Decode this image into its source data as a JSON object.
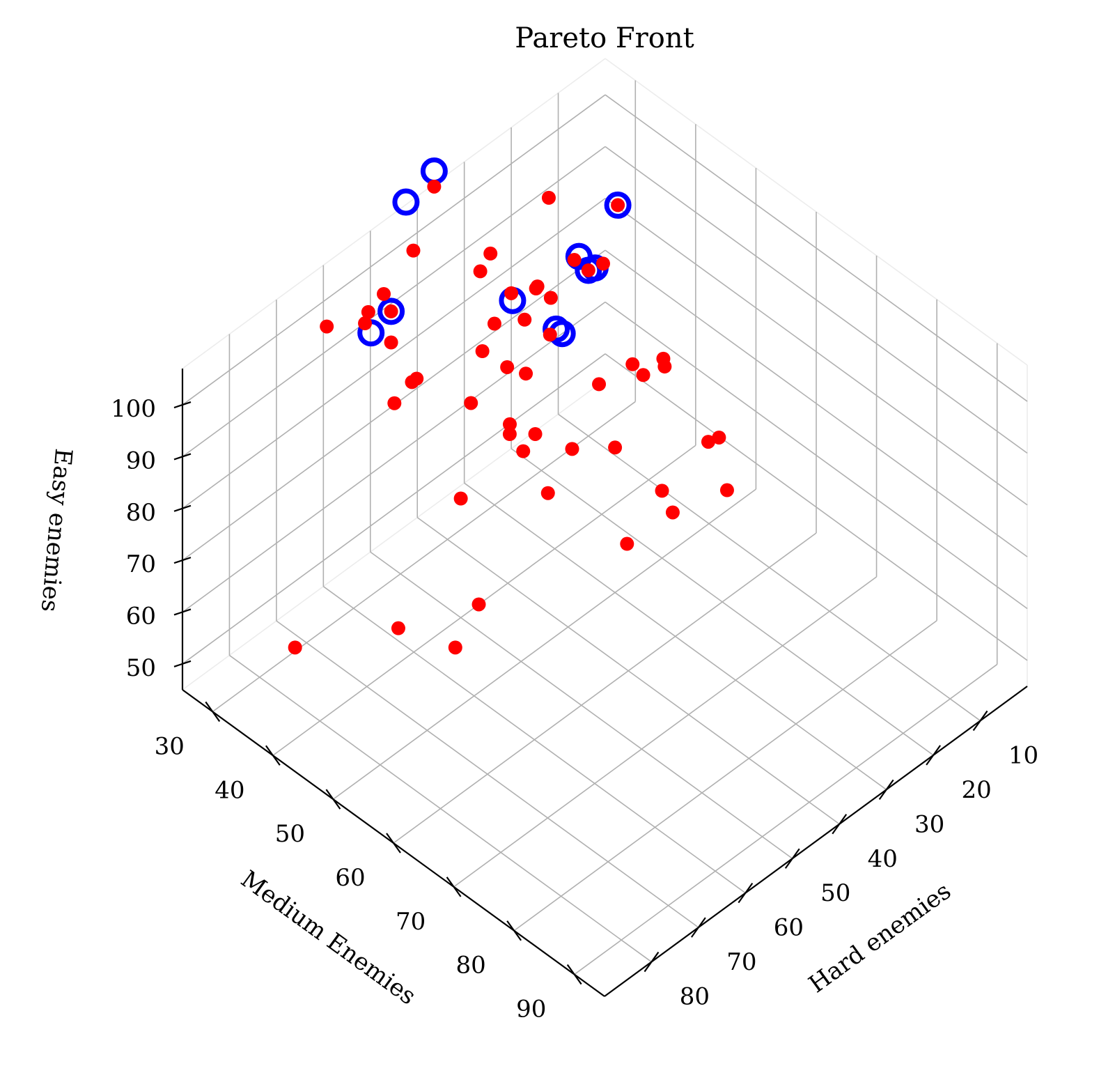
{
  "chart_data": {
    "type": "scatter",
    "projection": "3d",
    "title": "Pareto Front",
    "axes": {
      "x": {
        "label": "Hard enemies",
        "ticks": [
          10,
          20,
          30,
          40,
          50,
          60,
          70,
          80
        ],
        "range": [
          0,
          90
        ]
      },
      "y": {
        "label": "Medium Enemies",
        "ticks": [
          30,
          40,
          50,
          60,
          70,
          80,
          90
        ],
        "range": [
          25,
          95
        ]
      },
      "z": {
        "label": "Easy enemies",
        "ticks": [
          50,
          60,
          70,
          80,
          90,
          100
        ],
        "range": [
          45,
          107
        ]
      }
    },
    "grid": true,
    "colors": {
      "all_points": "#ff0000",
      "pareto_points": "#0000ff"
    },
    "series": [
      {
        "marker": "dot",
        "points": [
          [
            35,
            30,
            68
          ],
          [
            21,
            51,
            85
          ],
          [
            22,
            52,
            85
          ],
          [
            24,
            50,
            83
          ],
          [
            27,
            45,
            79
          ],
          [
            38,
            43,
            75
          ],
          [
            43,
            49,
            72
          ],
          [
            39,
            59,
            68
          ],
          [
            59,
            50,
            62
          ],
          [
            71,
            46,
            62
          ],
          [
            64,
            50,
            57
          ],
          [
            84,
            39,
            61
          ],
          [
            51,
            28,
            98
          ],
          [
            52,
            30,
            97
          ],
          [
            53,
            27,
            95
          ],
          [
            55,
            28,
            95
          ],
          [
            58,
            24,
            93
          ],
          [
            42,
            37,
            104
          ],
          [
            52,
            30,
            91
          ],
          [
            59,
            36,
            89
          ],
          [
            37,
            22,
            92
          ],
          [
            30,
            20,
            98
          ],
          [
            27,
            27,
            89
          ],
          [
            25,
            33,
            86
          ],
          [
            30,
            35,
            85
          ],
          [
            31,
            40,
            87
          ],
          [
            40,
            43,
            88
          ],
          [
            35,
            36,
            80
          ],
          [
            30,
            30,
            80
          ],
          [
            46,
            45,
            82
          ],
          [
            34,
            46,
            72
          ],
          [
            38,
            41,
            70
          ],
          [
            50,
            40,
            68
          ],
          [
            37,
            38,
            72
          ],
          [
            10,
            30,
            77
          ],
          [
            17,
            27,
            76
          ],
          [
            18,
            30,
            77
          ],
          [
            13,
            30,
            81
          ],
          [
            12,
            34,
            83
          ],
          [
            21,
            32,
            100
          ],
          [
            14,
            38,
            99
          ],
          [
            14,
            53,
            66
          ],
          [
            13,
            54,
            67
          ],
          [
            16,
            42,
            73
          ],
          [
            10,
            53,
            54
          ],
          [
            19,
            51,
            54
          ],
          [
            20,
            50,
            58
          ],
          [
            30,
            28,
            73
          ],
          [
            44,
            28,
            77
          ],
          [
            45,
            28,
            77
          ],
          [
            20,
            25,
            75
          ],
          [
            30,
            50,
            73
          ]
        ]
      },
      {
        "marker": "ring",
        "name": "",
        "points": [
          [
            52,
            30,
            97
          ],
          [
            55,
            29,
            94
          ],
          [
            36,
            20,
            99
          ],
          [
            30,
            20,
            101
          ],
          [
            30,
            33,
            87
          ],
          [
            22,
            34,
            77
          ],
          [
            22,
            35,
            77
          ],
          [
            10,
            30,
            77
          ],
          [
            12,
            30,
            81
          ],
          [
            14,
            38,
            99
          ],
          [
            15,
            35,
            85
          ]
        ]
      }
    ]
  }
}
